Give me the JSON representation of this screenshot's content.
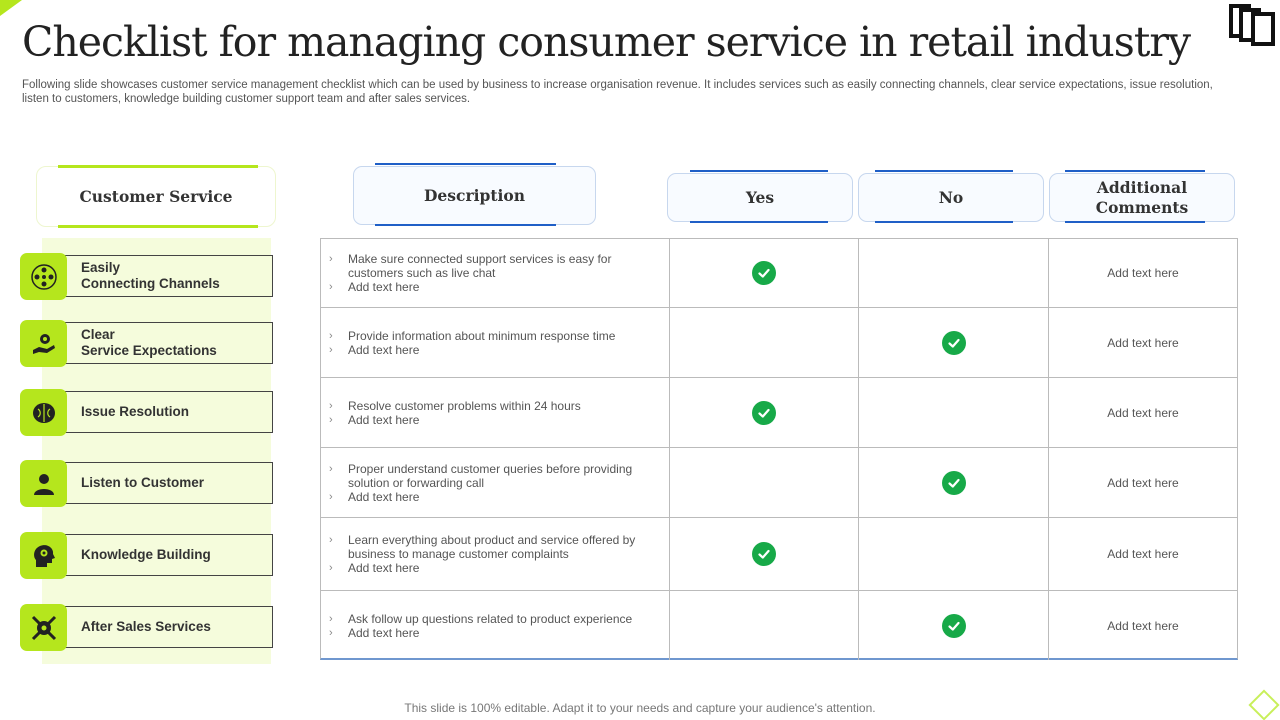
{
  "title": "Checklist for managing consumer service in retail industry",
  "subtitle": "Following slide showcases customer service management checklist which can be used by business to increase organisation revenue. It includes services such as easily connecting channels, clear service expectations, issue resolution, listen to customers, knowledge building customer support team and after sales services.",
  "left_header": "Customer Service",
  "columns": {
    "description": "Description",
    "yes": "Yes",
    "no": "No",
    "comments": "Additional Comments"
  },
  "services": [
    {
      "label": "Easily\nConnecting Channels",
      "icon": "network-people-icon"
    },
    {
      "label": "Clear\nService Expectations",
      "icon": "hand-gear-icon"
    },
    {
      "label": "Issue Resolution",
      "icon": "brain-icon"
    },
    {
      "label": "Listen to Customer",
      "icon": "person-icon"
    },
    {
      "label": "Knowledge Building",
      "icon": "head-gear-icon"
    },
    {
      "label": "After Sales Services",
      "icon": "tools-gear-icon"
    }
  ],
  "rows": [
    {
      "bullets": [
        "Make sure connected support services is easy for customers such as live chat",
        "Add text here"
      ],
      "yes": true,
      "no": false,
      "comment": "Add text here"
    },
    {
      "bullets": [
        "Provide information about minimum response time",
        "Add text here"
      ],
      "yes": false,
      "no": true,
      "comment": "Add text here"
    },
    {
      "bullets": [
        "Resolve customer problems within 24 hours",
        "Add text here"
      ],
      "yes": true,
      "no": false,
      "comment": "Add text here"
    },
    {
      "bullets": [
        "Proper understand customer queries before providing solution or forwarding call",
        "Add text here"
      ],
      "yes": false,
      "no": true,
      "comment": "Add text here"
    },
    {
      "bullets": [
        "Learn everything about product and service offered by business to manage customer complaints",
        "Add text here"
      ],
      "yes": true,
      "no": false,
      "comment": "Add text here"
    },
    {
      "bullets": [
        "Ask follow up questions related to product experience",
        "Add text here"
      ],
      "yes": false,
      "no": true,
      "comment": "Add text here"
    }
  ],
  "footer": "This slide is 100% editable. Adapt it to your needs and capture your audience's attention.",
  "colors": {
    "accent": "#b5e61d",
    "check": "#17a948",
    "header_line": "#1f5fc7"
  }
}
